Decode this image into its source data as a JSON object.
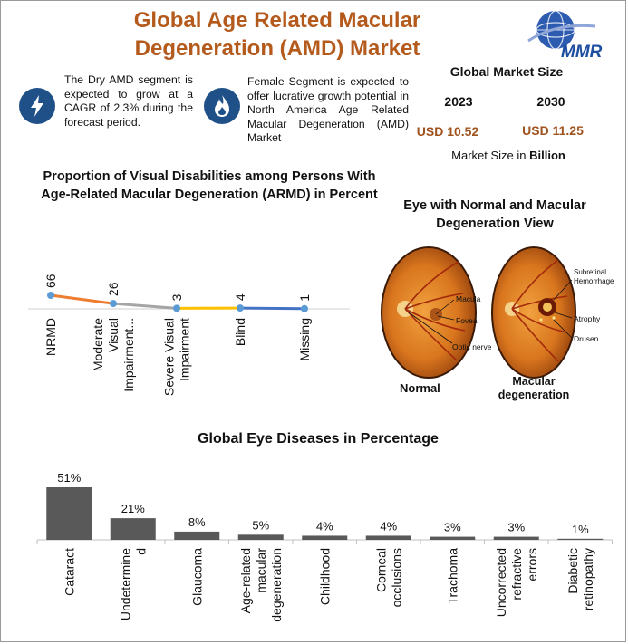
{
  "header": {
    "title_line1": "Global Age Related Macular",
    "title_line2": "Degeneration (AMD) Market",
    "logo_text": "MMR"
  },
  "notes": [
    {
      "icon": "lightning-icon",
      "text": "The Dry AMD segment is expected to grow at a CAGR of 2.3% during the forecast period."
    },
    {
      "icon": "flame-icon",
      "text": "Female Segment is expected to offer lucrative growth potential in North America Age Related Macular Degeneration (AMD) Market"
    }
  ],
  "market_size": {
    "title": "Global Market Size",
    "year_start": "2023",
    "year_end": "2030",
    "value_start": "USD 10.52",
    "value_end": "USD 11.25",
    "unit_prefix": "Market Size in ",
    "unit_bold": "Billion"
  },
  "eye_figure": {
    "title_line1": "Eye with Normal and Macular",
    "title_line2": "Degeneration View",
    "normal_caption": "Normal",
    "md_caption_line1": "Macular",
    "md_caption_line2": "degeneration",
    "normal_labels": [
      "Macula",
      "Fovea",
      "Optic nerve"
    ],
    "md_labels": [
      "Subretinal",
      "Hemorrhage",
      "Atrophy",
      "Drusen"
    ]
  },
  "chart_data": [
    {
      "type": "line",
      "title": "Proportion of Visual Disabilities among Persons With Age-Related Macular Degeneration (ARMD) in Percent",
      "title_line1": "Proportion of Visual Disabilities among Persons With",
      "title_line2": "Age-Related Macular Degeneration (ARMD) in Percent",
      "categories": [
        "NRMD",
        "Moderate Visual Impairment...",
        "Severe Visual Impairment",
        "Blind",
        "Missing"
      ],
      "values": [
        66,
        26,
        3,
        4,
        1
      ],
      "segment_colors": [
        "#ed7d31",
        "#a5a5a5",
        "#ffc000",
        "#4472c4"
      ],
      "point_color": "#5b9bd5"
    },
    {
      "type": "bar",
      "title": "Global Eye Diseases in Percentage",
      "categories": [
        "Cataract",
        "Undetermined",
        "Glaucoma",
        "Age-related macular degeneration",
        "Childhood",
        "Corneal occlusions",
        "Trachoma",
        "Uncorrected refractive errors",
        "Diabetic retinopathy"
      ],
      "category_lines": [
        [
          "Cataract"
        ],
        [
          "Undetermine",
          "d"
        ],
        [
          "Glaucoma"
        ],
        [
          "Age-related",
          "macular",
          "degeneration"
        ],
        [
          "Childhood"
        ],
        [
          "Corneal",
          "occlusions"
        ],
        [
          "Trachoma"
        ],
        [
          "Uncorrected",
          "refractive",
          "errors"
        ],
        [
          "Diabetic",
          "retinopathy"
        ]
      ],
      "values": [
        51,
        21,
        8,
        5,
        4,
        4,
        3,
        3,
        1
      ],
      "labels": [
        "51%",
        "21%",
        "8%",
        "5%",
        "4%",
        "4%",
        "3%",
        "3%",
        "1%"
      ],
      "bar_color": "#595959"
    }
  ]
}
